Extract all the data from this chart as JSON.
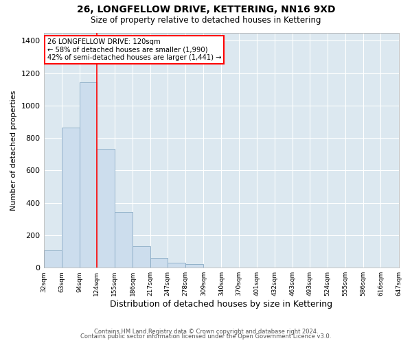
{
  "title": "26, LONGFELLOW DRIVE, KETTERING, NN16 9XD",
  "subtitle": "Size of property relative to detached houses in Kettering",
  "xlabel": "Distribution of detached houses by size in Kettering",
  "ylabel": "Number of detached properties",
  "bar_color": "#ccdded",
  "bar_edge_color": "#88aac4",
  "vline_x": 124,
  "vline_color": "red",
  "annotation_line1": "26 LONGFELLOW DRIVE: 120sqm",
  "annotation_line2": "← 58% of detached houses are smaller (1,990)",
  "annotation_line3": "42% of semi-detached houses are larger (1,441) →",
  "annotation_box_color": "white",
  "annotation_box_edge_color": "red",
  "tick_labels": [
    "32sqm",
    "63sqm",
    "94sqm",
    "124sqm",
    "155sqm",
    "186sqm",
    "217sqm",
    "247sqm",
    "278sqm",
    "309sqm",
    "340sqm",
    "370sqm",
    "401sqm",
    "432sqm",
    "463sqm",
    "493sqm",
    "524sqm",
    "555sqm",
    "586sqm",
    "616sqm",
    "647sqm"
  ],
  "bar_values": [
    107,
    862,
    1143,
    733,
    343,
    130,
    62,
    32,
    20,
    0,
    0,
    0,
    0,
    0,
    0,
    0,
    0,
    0,
    0,
    0
  ],
  "bin_edges": [
    32,
    63,
    94,
    124,
    155,
    186,
    217,
    247,
    278,
    309,
    340,
    370,
    401,
    432,
    463,
    493,
    524,
    555,
    586,
    616,
    647
  ],
  "ylim": [
    0,
    1450
  ],
  "yticks": [
    0,
    200,
    400,
    600,
    800,
    1000,
    1200,
    1400
  ],
  "footer_line1": "Contains HM Land Registry data © Crown copyright and database right 2024.",
  "footer_line2": "Contains public sector information licensed under the Open Government Licence v3.0.",
  "plot_bg_color": "#dce8f0",
  "fig_bg_color": "#ffffff",
  "grid_color": "#ffffff"
}
